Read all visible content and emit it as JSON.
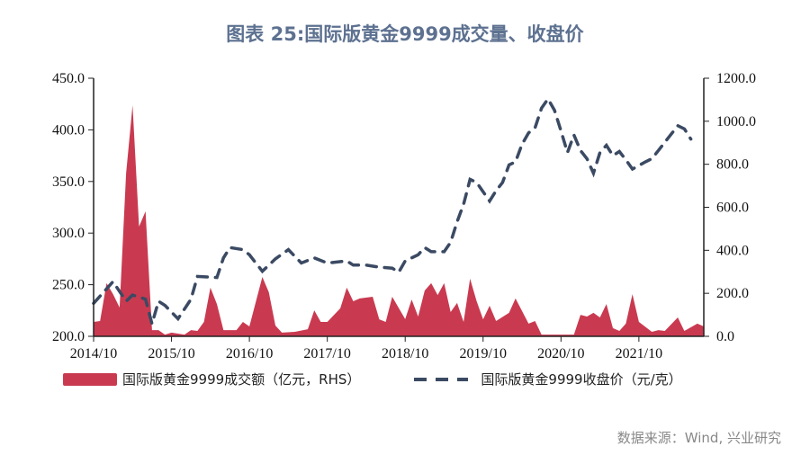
{
  "title": "图表 25:国际版黄金9999成交量、收盘价",
  "source": "数据来源：Wind, 兴业研究",
  "chart_data": {
    "type": "area+line",
    "title": "图表 25:国际版黄金9999成交量、收盘价",
    "x_range": [
      "2014-10",
      "2022-08"
    ],
    "x_ticks": [
      "2014/10",
      "2015/10",
      "2016/10",
      "2017/10",
      "2018/10",
      "2019/10",
      "2020/10",
      "2021/10"
    ],
    "y_left": {
      "lim": [
        200,
        450
      ],
      "ticks": [
        "200.0",
        "250.0",
        "300.0",
        "350.0",
        "400.0",
        "450.0"
      ]
    },
    "y_right": {
      "lim": [
        0,
        1200
      ],
      "ticks": [
        "0.0",
        "200.0",
        "400.0",
        "600.0",
        "800.0",
        "1000.0",
        "1200.0"
      ]
    },
    "grid": false,
    "legend_position": "bottom",
    "series": [
      {
        "name": "国际版黄金9999成交额（亿元，RHS）",
        "type": "area",
        "axis": "right",
        "color": "#c93a50",
        "x": [
          "2014-10",
          "2014-11",
          "2014-12",
          "2015-01",
          "2015-02",
          "2015-03",
          "2015-04",
          "2015-05",
          "2015-06",
          "2015-07",
          "2015-08",
          "2015-09",
          "2015-10",
          "2015-12",
          "2016-01",
          "2016-02",
          "2016-03",
          "2016-04",
          "2016-05",
          "2016-06",
          "2016-08",
          "2016-09",
          "2016-10",
          "2016-12",
          "2017-01",
          "2017-02",
          "2017-03",
          "2017-05",
          "2017-07",
          "2017-08",
          "2017-09",
          "2017-10",
          "2017-12",
          "2018-01",
          "2018-02",
          "2018-03",
          "2018-05",
          "2018-06",
          "2018-07",
          "2018-08",
          "2018-10",
          "2018-11",
          "2018-12",
          "2019-01",
          "2019-02",
          "2019-03",
          "2019-04",
          "2019-05",
          "2019-06",
          "2019-07",
          "2019-08",
          "2019-09",
          "2019-10",
          "2019-11",
          "2019-12",
          "2020-02",
          "2020-03",
          "2020-05",
          "2020-06",
          "2020-07",
          "2020-12",
          "2021-01",
          "2021-02",
          "2021-03",
          "2021-04",
          "2021-05",
          "2021-06",
          "2021-07",
          "2021-08",
          "2021-09",
          "2021-10",
          "2021-12",
          "2022-01",
          "2022-02",
          "2022-04",
          "2022-05",
          "2022-07",
          "2022-08"
        ],
        "values": [
          67,
          71,
          247,
          196,
          134,
          757,
          1074,
          510,
          581,
          29,
          29,
          8,
          17,
          8,
          29,
          25,
          67,
          226,
          150,
          29,
          29,
          67,
          46,
          276,
          205,
          50,
          17,
          21,
          33,
          121,
          67,
          67,
          130,
          226,
          163,
          176,
          184,
          79,
          67,
          184,
          80,
          171,
          92,
          213,
          247,
          192,
          247,
          113,
          155,
          67,
          268,
          163,
          79,
          142,
          71,
          109,
          176,
          59,
          71,
          8,
          8,
          100,
          92,
          109,
          88,
          150,
          38,
          25,
          59,
          196,
          67,
          21,
          29,
          25,
          88,
          25,
          59,
          46
        ]
      },
      {
        "name": "国际版黄金9999收盘价（元/克）",
        "type": "line",
        "axis": "left",
        "style": "dashed",
        "color": "#3b4a63",
        "x": [
          "2014-10",
          "2015-01",
          "2015-03",
          "2015-04",
          "2015-06",
          "2015-07",
          "2015-08",
          "2015-09",
          "2015-11",
          "2016-01",
          "2016-02",
          "2016-05",
          "2016-06",
          "2016-07",
          "2016-09",
          "2016-10",
          "2016-12",
          "2017-02",
          "2017-04",
          "2017-06",
          "2017-08",
          "2017-10",
          "2018-01",
          "2018-02",
          "2018-04",
          "2018-06",
          "2018-08",
          "2018-09",
          "2018-10",
          "2018-12",
          "2019-01",
          "2019-02",
          "2019-04",
          "2019-05",
          "2019-06",
          "2019-07",
          "2019-08",
          "2019-09",
          "2019-10",
          "2019-11",
          "2019-12",
          "2020-01",
          "2020-02",
          "2020-03",
          "2020-04",
          "2020-05",
          "2020-06",
          "2020-07",
          "2020-08",
          "2020-09",
          "2020-10",
          "2020-11",
          "2020-12",
          "2021-01",
          "2021-02",
          "2021-03",
          "2021-04",
          "2021-05",
          "2021-06",
          "2021-07",
          "2021-08",
          "2021-09",
          "2021-11",
          "2021-12",
          "2022-01",
          "2022-02",
          "2022-04",
          "2022-05",
          "2022-06"
        ],
        "values": [
          232,
          253,
          234,
          240,
          236,
          212,
          234,
          230,
          217,
          236,
          258,
          257,
          276,
          286,
          284,
          279,
          263,
          275,
          284,
          271,
          276,
          271,
          273,
          269,
          269,
          267,
          266,
          262,
          273,
          279,
          286,
          282,
          282,
          291,
          311,
          328,
          352,
          349,
          340,
          331,
          341,
          349,
          366,
          369,
          386,
          397,
          402,
          421,
          430,
          419,
          399,
          378,
          395,
          380,
          372,
          358,
          378,
          385,
          375,
          379,
          371,
          362,
          369,
          372,
          380,
          388,
          404,
          401,
          391
        ]
      }
    ]
  }
}
